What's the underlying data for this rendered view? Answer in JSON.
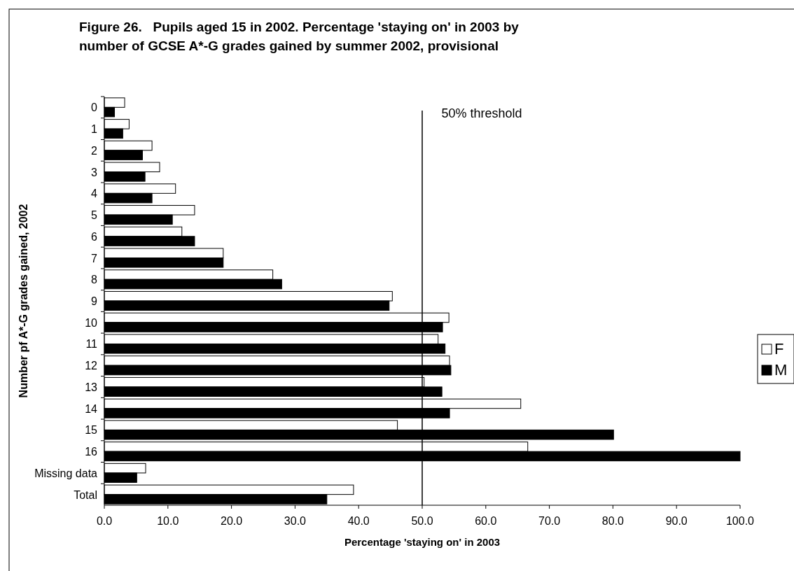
{
  "chart_data": {
    "type": "bar",
    "orientation": "horizontal",
    "title": "Figure 26.   Pupils aged 15 in 2002. Percentage 'staying on' in 2003 by\nnumber of GCSE A*-G grades gained by summer 2002, provisional",
    "xlabel": "Percentage 'staying on' in 2003",
    "ylabel": "Number pf A*-G grades gained, 2002",
    "categories": [
      "0",
      "1",
      "2",
      "3",
      "4",
      "5",
      "6",
      "7",
      "8",
      "9",
      "10",
      "11",
      "12",
      "13",
      "14",
      "15",
      "16",
      "Missing data",
      "Total"
    ],
    "series": [
      {
        "name": "F",
        "color": "#ffffff",
        "values": [
          3.2,
          3.9,
          7.5,
          8.7,
          11.2,
          14.2,
          12.2,
          18.7,
          26.5,
          45.3,
          54.2,
          52.5,
          54.3,
          50.3,
          65.5,
          46.1,
          66.6,
          6.5,
          39.2
        ]
      },
      {
        "name": "M",
        "color": "#000000",
        "values": [
          1.6,
          2.9,
          6.0,
          6.4,
          7.5,
          10.7,
          14.2,
          18.7,
          27.9,
          44.8,
          53.2,
          53.6,
          54.5,
          53.1,
          54.3,
          80.1,
          100,
          5.1,
          35.0
        ]
      }
    ],
    "xlim": [
      0,
      100
    ],
    "xticks": [
      {
        "value": 0,
        "label": "0.0"
      },
      {
        "value": 10,
        "label": "10.0"
      },
      {
        "value": 20,
        "label": "20.0"
      },
      {
        "value": 30,
        "label": "30.0"
      },
      {
        "value": 40,
        "label": "40.0"
      },
      {
        "value": 50,
        "label": "50.0"
      },
      {
        "value": 60,
        "label": "60.0"
      },
      {
        "value": 70,
        "label": "70.0"
      },
      {
        "value": 80,
        "label": "80.0"
      },
      {
        "value": 90,
        "label": "90.0"
      },
      {
        "value": 100,
        "label": "100.0"
      }
    ],
    "ref_lines": [
      {
        "axis": "x",
        "value": 50,
        "label": "50% threshold",
        "color": "#000000"
      }
    ],
    "legend": "right",
    "grid": false
  }
}
